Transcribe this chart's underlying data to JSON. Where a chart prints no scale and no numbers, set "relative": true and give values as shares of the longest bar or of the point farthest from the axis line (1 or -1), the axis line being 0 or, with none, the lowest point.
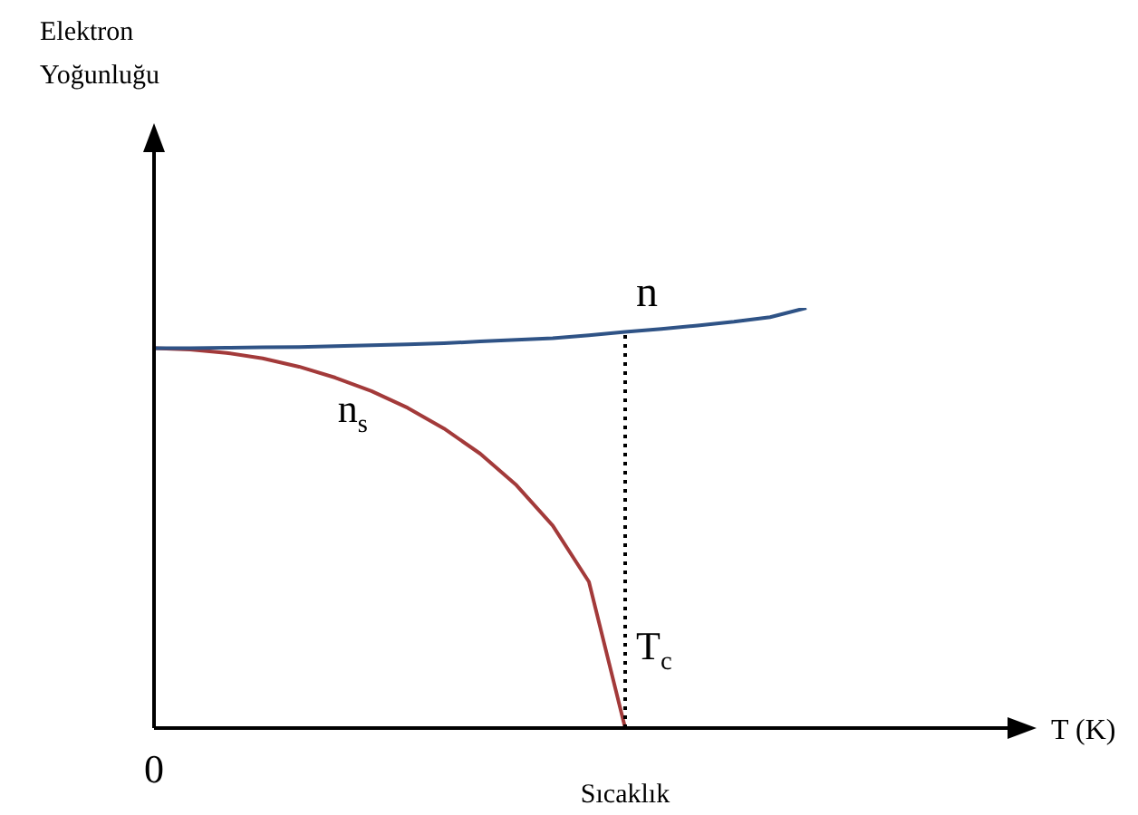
{
  "chart_data": {
    "type": "line",
    "relative": true,
    "xlabel": "Sıcaklık",
    "annotations": [
      "Elektron Yoğunluğu",
      "T (K)",
      "0",
      "T$_{c}$"
    ],
    "categories": [
      null,
      null,
      null,
      null,
      null,
      null,
      null,
      null,
      null,
      null,
      null,
      null,
      null,
      null,
      null,
      null,
      null,
      null,
      null
    ],
    "series": [
      {
        "name": "n",
        "color": "#2f5386",
        "values": [
          0.904,
          0.904,
          0.905,
          0.906,
          0.907,
          0.909,
          0.911,
          0.913,
          0.916,
          0.92,
          0.924,
          0.928,
          0.935,
          0.943,
          0.95,
          0.958,
          0.967,
          0.978,
          1.0
        ]
      },
      {
        "name": "n$_{s}$",
        "color": "#a33a3a",
        "values": [
          0.904,
          0.901,
          0.893,
          0.88,
          0.86,
          0.834,
          0.802,
          0.762,
          0.713,
          0.653,
          0.578,
          0.482,
          0.348,
          0,
          null,
          null,
          null,
          null,
          null
        ]
      }
    ],
    "grid": false,
    "legend": false,
    "marker": "none",
    "line_style": "solid"
  }
}
